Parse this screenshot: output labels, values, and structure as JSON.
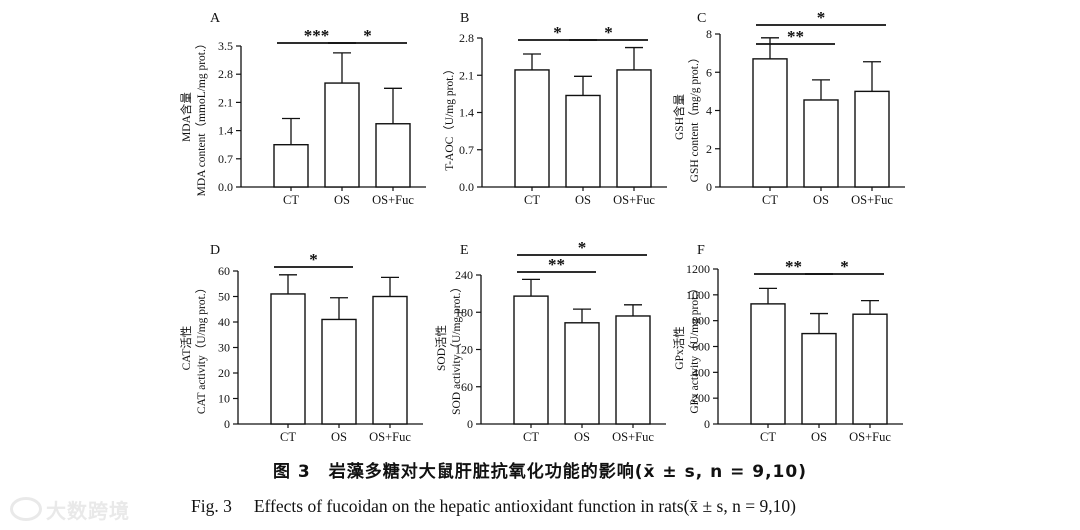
{
  "chart_data": [
    {
      "type": "bar",
      "panel": "A",
      "categories": [
        "CT",
        "OS",
        "OS+Fuc"
      ],
      "values": [
        1.05,
        2.58,
        1.57
      ],
      "errors": [
        0.65,
        0.75,
        0.88
      ],
      "ylabel_cn": "MDA含量",
      "ylabel_en": "MDA content（mmoL/mg prot.）",
      "ylim": [
        0,
        3.5
      ],
      "yticks": [
        "0.0",
        "0.7",
        "1.4",
        "2.1",
        "2.8",
        "3.5"
      ],
      "significance": [
        {
          "from": 0,
          "to": 1,
          "label": "***"
        },
        {
          "from": 1,
          "to": 2,
          "label": "*"
        }
      ]
    },
    {
      "type": "bar",
      "panel": "B",
      "categories": [
        "CT",
        "OS",
        "OS+Fuc"
      ],
      "values": [
        2.2,
        1.72,
        2.2
      ],
      "errors": [
        0.3,
        0.36,
        0.42
      ],
      "ylabel_cn": "",
      "ylabel_en": "T-AOC（U/mg prot.）",
      "ylim": [
        0,
        2.8
      ],
      "yticks": [
        "0.0",
        "0.7",
        "1.4",
        "2.1",
        "2.8"
      ],
      "significance": [
        {
          "from": 0,
          "to": 1,
          "label": "*"
        },
        {
          "from": 1,
          "to": 2,
          "label": "*"
        }
      ]
    },
    {
      "type": "bar",
      "panel": "C",
      "categories": [
        "CT",
        "OS",
        "OS+Fuc"
      ],
      "values": [
        6.7,
        4.55,
        5.0
      ],
      "errors": [
        1.1,
        1.05,
        1.55
      ],
      "ylabel_cn": "GSH含量",
      "ylabel_en": "GSH content（mg/g prot.）",
      "ylim": [
        0,
        8
      ],
      "yticks": [
        "0",
        "2",
        "4",
        "6",
        "8"
      ],
      "significance": [
        {
          "from": 0,
          "to": 1,
          "label": "**"
        },
        {
          "from": 0,
          "to": 2,
          "label": "*"
        }
      ]
    },
    {
      "type": "bar",
      "panel": "D",
      "categories": [
        "CT",
        "OS",
        "OS+Fuc"
      ],
      "values": [
        51,
        41,
        50
      ],
      "errors": [
        7.5,
        8.5,
        7.5
      ],
      "ylabel_cn": "CAT活性",
      "ylabel_en": "CAT activity（U/mg prot.）",
      "ylim": [
        0,
        60
      ],
      "yticks": [
        "0",
        "10",
        "20",
        "30",
        "40",
        "50",
        "60"
      ],
      "significance": [
        {
          "from": 0,
          "to": 1,
          "label": "*"
        }
      ]
    },
    {
      "type": "bar",
      "panel": "E",
      "categories": [
        "CT",
        "OS",
        "OS+Fuc"
      ],
      "values": [
        206,
        163,
        174
      ],
      "errors": [
        27,
        22,
        18
      ],
      "ylabel_cn": "SOD活性",
      "ylabel_en": "SOD activity（U/mg prot.）",
      "ylim": [
        0,
        240
      ],
      "yticks": [
        "0",
        "60",
        "120",
        "180",
        "240"
      ],
      "significance": [
        {
          "from": 0,
          "to": 1,
          "label": "**"
        },
        {
          "from": 0,
          "to": 2,
          "label": "*"
        }
      ]
    },
    {
      "type": "bar",
      "panel": "F",
      "categories": [
        "CT",
        "OS",
        "OS+Fuc"
      ],
      "values": [
        930,
        700,
        850
      ],
      "errors": [
        120,
        155,
        105
      ],
      "ylabel_cn": "GPx活性",
      "ylabel_en": "GPx activity（U/mg prot.）",
      "ylim": [
        0,
        1200
      ],
      "yticks": [
        "0",
        "200",
        "400",
        "600",
        "800",
        "1000",
        "1200"
      ],
      "significance": [
        {
          "from": 0,
          "to": 1,
          "label": "**"
        },
        {
          "from": 1,
          "to": 2,
          "label": "*"
        }
      ]
    }
  ],
  "caption_cn": "图 3　岩藻多糖对大鼠肝脏抗氧化功能的影响(x̄ ± s, n = 9,10)",
  "caption_en_label": "Fig. 3",
  "caption_en_text": "Effects of fucoidan on the hepatic antioxidant function in rats(x̄ ± s, n = 9,10)",
  "watermark_text": "大数跨境"
}
